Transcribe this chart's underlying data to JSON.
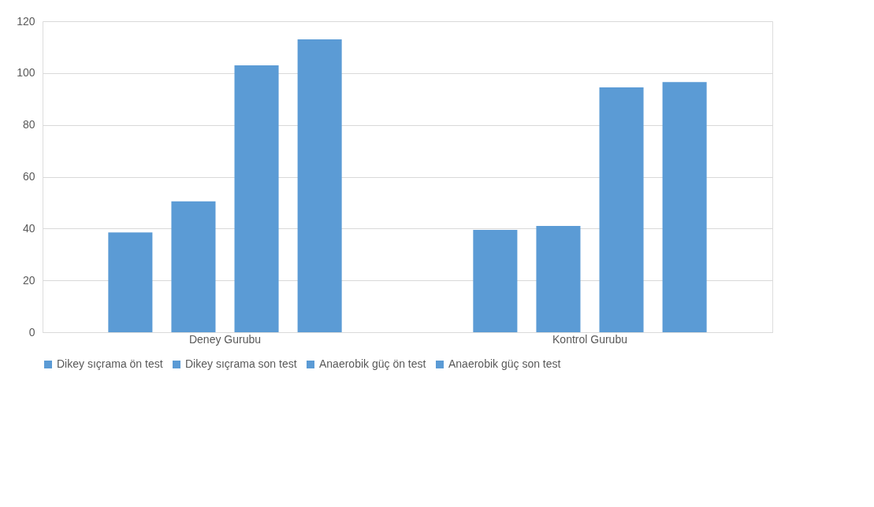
{
  "chart_data": {
    "type": "bar",
    "categories": [
      "Deney Gurubu",
      "Kontrol Gurubu"
    ],
    "series": [
      {
        "name": "Dikey sıçrama ön test",
        "color": "#5b9bd5",
        "values": [
          38.5,
          39.5
        ]
      },
      {
        "name": "Dikey sıçrama son test",
        "color": "#5b9bd5",
        "values": [
          50.5,
          41
        ]
      },
      {
        "name": "Anaerobik güç ön test",
        "color": "#5b9bd5",
        "values": [
          103,
          94.5
        ]
      },
      {
        "name": "Anaerobik güç son test",
        "color": "#5b9bd5",
        "values": [
          113,
          96.5
        ]
      }
    ],
    "ylim": [
      0,
      120
    ],
    "yticks": [
      0,
      20,
      40,
      60,
      80,
      100,
      120
    ],
    "grid": "y",
    "legend": "bottom"
  }
}
